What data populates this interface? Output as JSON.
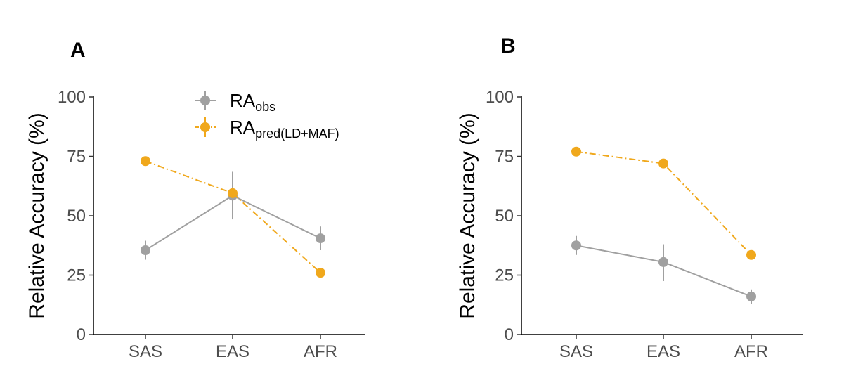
{
  "chart_data": [
    {
      "panel_label": "A",
      "type": "line",
      "categories": [
        "SAS",
        "EAS",
        "AFR"
      ],
      "ylabel": "Relative  Accuracy (%)",
      "ylim": [
        0,
        100
      ],
      "yticks": [
        0,
        25,
        50,
        75,
        100
      ],
      "grid": false,
      "legend": "top-center",
      "series": [
        {
          "name": "RA",
          "subscript": "obs",
          "color": "#a0a0a0",
          "line_style": "solid",
          "values": [
            35.5,
            58.5,
            40.5
          ],
          "error_low": [
            31.5,
            48.5,
            35.5
          ],
          "error_high": [
            39.5,
            68.5,
            45.5
          ]
        },
        {
          "name": "RA",
          "subscript": "pred(LD+MAF)",
          "color": "#f0a81c",
          "line_style": "dashdot",
          "values": [
            73,
            59.5,
            26
          ],
          "error_low": [
            72,
            58.5,
            25
          ],
          "error_high": [
            74,
            60.5,
            27
          ]
        }
      ]
    },
    {
      "panel_label": "B",
      "type": "line",
      "categories": [
        "SAS",
        "EAS",
        "AFR"
      ],
      "ylabel": "Relative  Accuracy (%)",
      "ylim": [
        0,
        100
      ],
      "yticks": [
        0,
        25,
        50,
        75,
        100
      ],
      "grid": false,
      "series": [
        {
          "name": "RA",
          "subscript": "obs",
          "color": "#a0a0a0",
          "line_style": "solid",
          "values": [
            37.5,
            30.5,
            16
          ],
          "error_low": [
            33.5,
            22.5,
            13
          ],
          "error_high": [
            41.5,
            38,
            19
          ]
        },
        {
          "name": "RA",
          "subscript": "pred(LD+MAF)",
          "color": "#f0a81c",
          "line_style": "dashdot",
          "values": [
            77,
            72,
            33.5
          ],
          "error_low": [
            76,
            71,
            32.5
          ],
          "error_high": [
            78,
            73,
            34.5
          ]
        }
      ]
    }
  ]
}
